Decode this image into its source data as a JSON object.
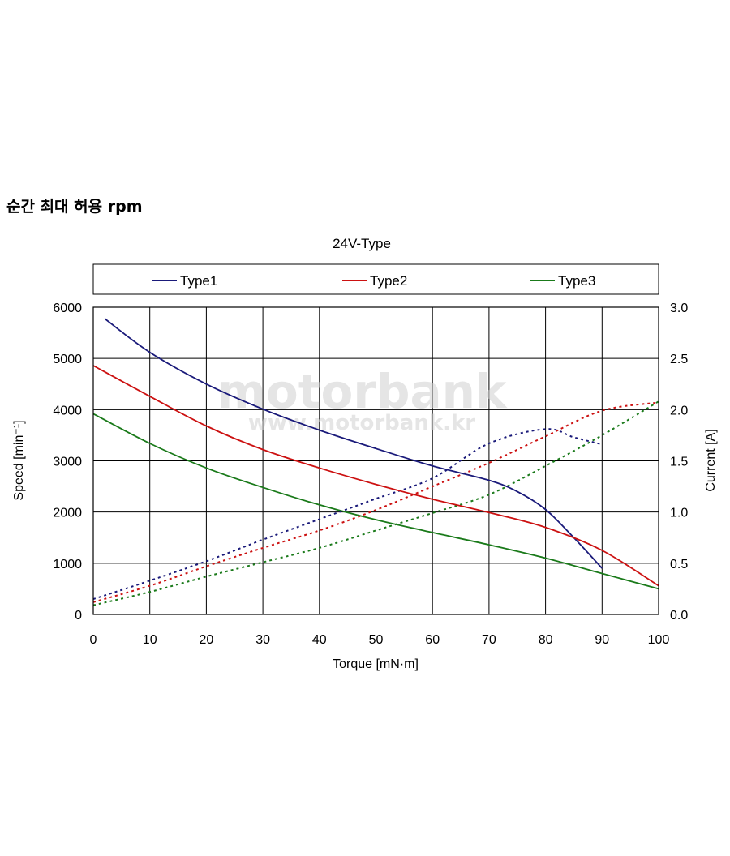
{
  "heading": "순간 최대 허용 rpm",
  "watermark": {
    "main": "motorbank",
    "sub": "www.motorbank.kr"
  },
  "chart_data": {
    "type": "line",
    "title": "24V-Type",
    "xlabel": "Torque [mN·m]",
    "ylabel": "Speed [min⁻¹]",
    "y2label": "Current [A]",
    "xlim": [
      0,
      100
    ],
    "ylim": [
      0,
      6000
    ],
    "y2lim": [
      0,
      3.0
    ],
    "xticks": [
      0,
      10,
      20,
      30,
      40,
      50,
      60,
      70,
      80,
      90,
      100
    ],
    "yticks": [
      0,
      1000,
      2000,
      3000,
      4000,
      5000,
      6000
    ],
    "y2ticks": [
      "0.0",
      "0.5",
      "1.0",
      "1.5",
      "2.0",
      "2.5",
      "3.0"
    ],
    "grid": true,
    "legend_position": "top",
    "series": [
      {
        "name": "Type1",
        "color": "#1a1a7a",
        "speed": [
          [
            2,
            5780
          ],
          [
            10,
            5120
          ],
          [
            20,
            4500
          ],
          [
            30,
            4010
          ],
          [
            40,
            3600
          ],
          [
            50,
            3240
          ],
          [
            60,
            2900
          ],
          [
            70,
            2620
          ],
          [
            75,
            2400
          ],
          [
            80,
            2050
          ],
          [
            85,
            1500
          ],
          [
            90,
            900
          ]
        ],
        "current": [
          [
            0,
            0.15
          ],
          [
            10,
            0.33
          ],
          [
            20,
            0.52
          ],
          [
            30,
            0.73
          ],
          [
            40,
            0.93
          ],
          [
            50,
            1.13
          ],
          [
            60,
            1.33
          ],
          [
            70,
            1.67
          ],
          [
            80,
            1.81
          ],
          [
            85,
            1.73
          ],
          [
            90,
            1.66
          ]
        ]
      },
      {
        "name": "Type2",
        "color": "#cc1111",
        "speed": [
          [
            0,
            4860
          ],
          [
            10,
            4260
          ],
          [
            20,
            3680
          ],
          [
            30,
            3220
          ],
          [
            40,
            2860
          ],
          [
            50,
            2540
          ],
          [
            60,
            2250
          ],
          [
            70,
            1990
          ],
          [
            80,
            1700
          ],
          [
            90,
            1250
          ],
          [
            100,
            560
          ]
        ],
        "current": [
          [
            0,
            0.12
          ],
          [
            10,
            0.28
          ],
          [
            20,
            0.47
          ],
          [
            30,
            0.65
          ],
          [
            40,
            0.82
          ],
          [
            50,
            1.02
          ],
          [
            60,
            1.25
          ],
          [
            70,
            1.48
          ],
          [
            80,
            1.74
          ],
          [
            90,
            1.99
          ],
          [
            100,
            2.07
          ]
        ]
      },
      {
        "name": "Type3",
        "color": "#1a7a1a",
        "speed": [
          [
            0,
            3920
          ],
          [
            10,
            3340
          ],
          [
            20,
            2860
          ],
          [
            30,
            2480
          ],
          [
            40,
            2140
          ],
          [
            50,
            1850
          ],
          [
            60,
            1600
          ],
          [
            70,
            1360
          ],
          [
            80,
            1100
          ],
          [
            90,
            800
          ],
          [
            100,
            500
          ]
        ],
        "current": [
          [
            0,
            0.09
          ],
          [
            10,
            0.22
          ],
          [
            20,
            0.37
          ],
          [
            30,
            0.51
          ],
          [
            40,
            0.65
          ],
          [
            50,
            0.82
          ],
          [
            60,
            0.99
          ],
          [
            70,
            1.17
          ],
          [
            80,
            1.45
          ],
          [
            90,
            1.75
          ],
          [
            100,
            2.08
          ]
        ]
      }
    ]
  }
}
